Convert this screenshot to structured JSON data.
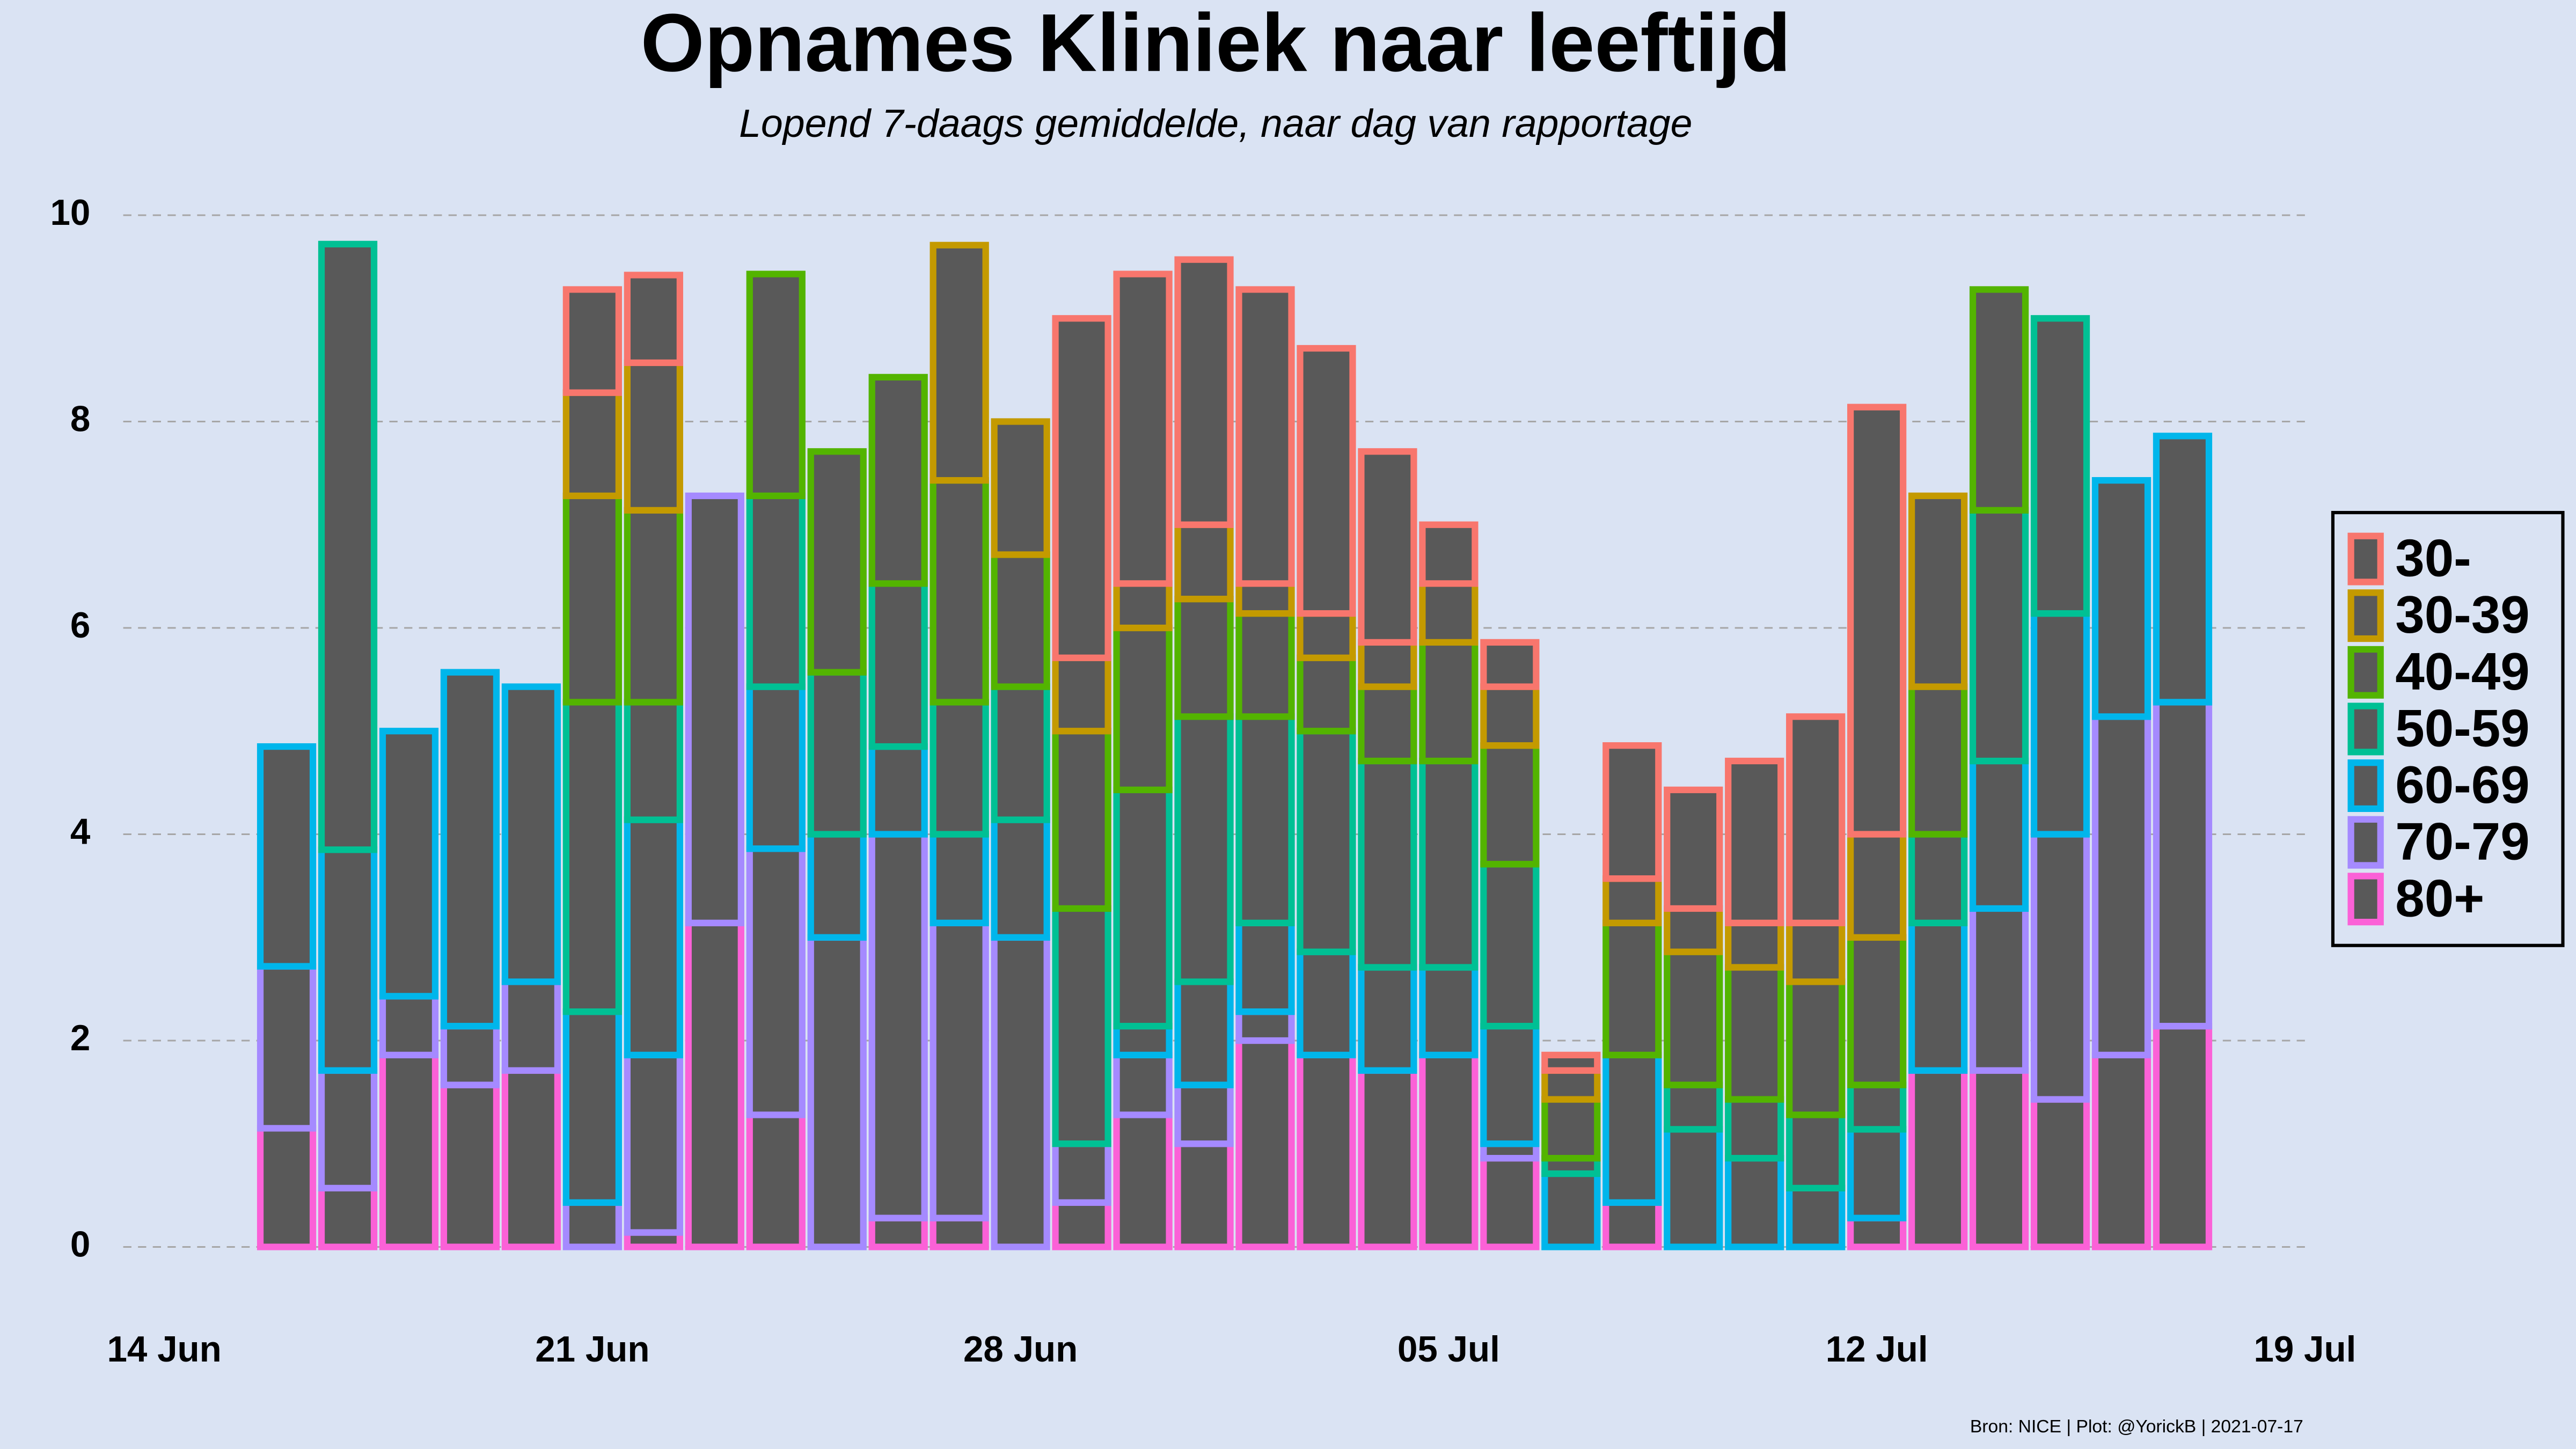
{
  "chart_data": {
    "type": "stacked_bar",
    "title": "Opnames Kliniek naar leeftijd",
    "subtitle": "Lopend 7-daags gemiddelde, naar dag van rapportage",
    "caption": "Bron: NICE | Plot: @YorickB  |  2021-07-17",
    "x": [
      "16 Jun",
      "17 Jun",
      "18 Jun",
      "19 Jun",
      "20 Jun",
      "21 Jun",
      "22 Jun",
      "23 Jun",
      "24 Jun",
      "25 Jun",
      "26 Jun",
      "27 Jun",
      "28 Jun",
      "29 Jun",
      "30 Jun",
      "01 Jul",
      "02 Jul",
      "03 Jul",
      "04 Jul",
      "05 Jul",
      "06 Jul",
      "07 Jul",
      "08 Jul",
      "09 Jul",
      "10 Jul",
      "11 Jul",
      "12 Jul",
      "13 Jul",
      "14 Jul",
      "15 Jul",
      "16 Jul",
      "17 Jul"
    ],
    "xlim": [
      "14 Jun",
      "19 Jul"
    ],
    "xticks": [
      "14 Jun",
      "21 Jun",
      "28 Jun",
      "05 Jul",
      "12 Jul",
      "19 Jul"
    ],
    "ylim": [
      0,
      10
    ],
    "yticks": [
      0,
      2,
      4,
      6,
      8,
      10
    ],
    "grid": true,
    "legend": "right",
    "bar_fill": "#595959",
    "series": [
      {
        "name": "30-",
        "color": "#F8766D",
        "values": [
          0,
          0,
          0,
          0,
          0,
          1.0,
          0.85,
          0,
          0,
          0,
          0,
          0,
          0,
          3.29,
          3.0,
          2.57,
          2.85,
          2.57,
          1.85,
          0.57,
          0.43,
          0.15,
          1.29,
          1.15,
          1.57,
          2.0,
          4.14,
          0,
          0,
          0,
          0,
          0
        ]
      },
      {
        "name": "30-39",
        "color": "#C49A00",
        "values": [
          0,
          0,
          0,
          0,
          0,
          1.0,
          1.43,
          0,
          0,
          0,
          0,
          2.28,
          1.29,
          0.71,
          0.43,
          0.72,
          0.29,
          0.43,
          0.43,
          0.57,
          0.57,
          0.28,
          0.43,
          0.42,
          0.43,
          0.57,
          1.0,
          1.85,
          0,
          0,
          0,
          0
        ]
      },
      {
        "name": "40-49",
        "color": "#53B400",
        "values": [
          0,
          0,
          0,
          0,
          0,
          2.0,
          1.86,
          0,
          2.15,
          2.14,
          2.0,
          2.15,
          1.28,
          1.72,
          1.57,
          1.14,
          1.0,
          0.71,
          0.72,
          1.15,
          1.15,
          0.57,
          1.28,
          1.29,
          1.28,
          1.29,
          1.43,
          1.43,
          2.14,
          0,
          0,
          0
        ]
      },
      {
        "name": "50-59",
        "color": "#00C094",
        "values": [
          0,
          5.87,
          0,
          0,
          0,
          3.0,
          1.14,
          0,
          1.85,
          1.57,
          1.58,
          1.28,
          1.29,
          2.28,
          2.29,
          2.57,
          2.0,
          2.14,
          2.0,
          2.0,
          1.57,
          0.15,
          0,
          0.43,
          0.57,
          0.71,
          0.43,
          0.86,
          2.43,
          2.86,
          0,
          0
        ]
      },
      {
        "name": "60-69",
        "color": "#00B6EB",
        "values": [
          2.13,
          2.14,
          2.57,
          3.43,
          2.86,
          1.85,
          2.28,
          0,
          1.57,
          1.0,
          0.85,
          0.86,
          1.14,
          0,
          0.28,
          1.0,
          0.86,
          1.0,
          1.0,
          0.85,
          1.14,
          0.71,
          1.43,
          1.14,
          0.86,
          0.57,
          0.86,
          1.43,
          1.43,
          2.14,
          2.29,
          2.58
        ]
      },
      {
        "name": "70-79",
        "color": "#A58AFF",
        "values": [
          1.57,
          1.14,
          0.57,
          0.57,
          0.86,
          0.43,
          1.72,
          4.14,
          2.58,
          3.0,
          3.72,
          2.86,
          3.0,
          0.57,
          0.58,
          0.57,
          0.28,
          0,
          0,
          0,
          0.14,
          0,
          0,
          0,
          0,
          0,
          0,
          0,
          1.57,
          2.57,
          3.28,
          3.14
        ]
      },
      {
        "name": "80+",
        "color": "#FB61D7",
        "values": [
          1.15,
          0.57,
          1.86,
          1.57,
          1.71,
          0,
          0.14,
          3.14,
          1.28,
          0,
          0.28,
          0.28,
          0,
          0.43,
          1.28,
          1.0,
          2.0,
          1.86,
          1.71,
          1.86,
          0.86,
          0,
          0.43,
          0,
          0,
          0,
          0.28,
          1.71,
          1.71,
          1.43,
          1.86,
          2.14
        ]
      }
    ]
  }
}
